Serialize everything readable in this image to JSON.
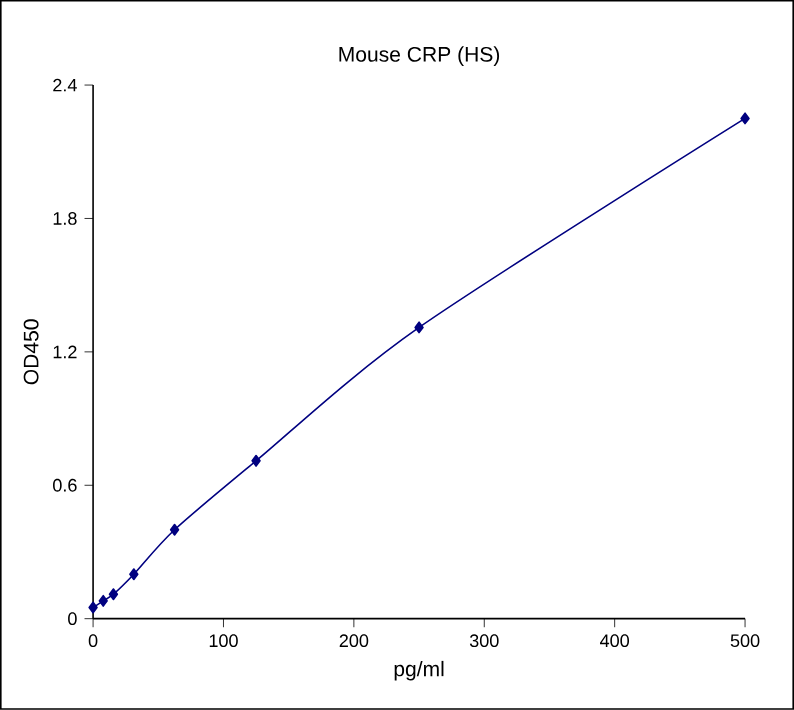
{
  "chart_data": {
    "type": "line",
    "title": "Mouse CRP (HS)",
    "xlabel": "pg/ml",
    "ylabel": "OD450",
    "x": [
      0,
      7.8,
      15.6,
      31.25,
      62.5,
      125,
      250,
      500
    ],
    "series": [
      {
        "color": "#000080",
        "values": [
          0.05,
          0.08,
          0.11,
          0.2,
          0.4,
          0.71,
          1.31,
          2.25
        ]
      }
    ],
    "xlim": [
      0,
      500
    ],
    "ylim": [
      0,
      2.4
    ],
    "xticks": [
      0,
      100,
      200,
      300,
      400,
      500
    ],
    "yticks": [
      0,
      0.6,
      1.2,
      1.8,
      2.4
    ],
    "marker": "diamond",
    "grid": false
  }
}
